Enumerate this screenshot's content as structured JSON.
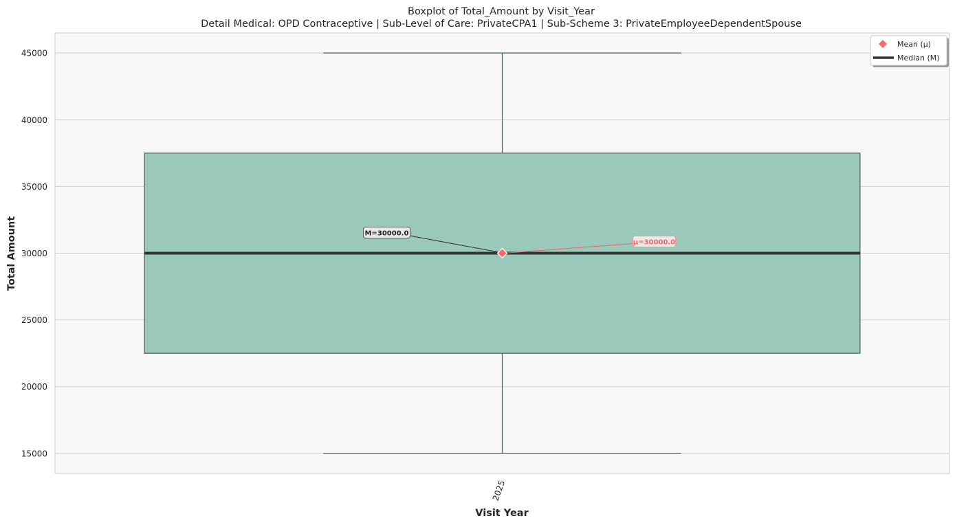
{
  "chart_data": {
    "type": "box",
    "title": "Boxplot of Total_Amount by Visit_Year",
    "subtitle": "Detail Medical: OPD Contraceptive | Sub-Level of Care: PrivateCPA1 | Sub-Scheme 3: PrivateEmployeeDependentSpouse",
    "xlabel": "Visit Year",
    "ylabel": "Total Amount",
    "categories": [
      "2025"
    ],
    "boxes": [
      {
        "category": "2025",
        "whisker_low": 15000,
        "q1": 22500,
        "median": 30000,
        "q3": 37500,
        "whisker_high": 45000,
        "mean": 30000,
        "median_label": "M=30000.0",
        "mean_label": "μ=30000.0"
      }
    ],
    "y_ticks": [
      15000,
      20000,
      25000,
      30000,
      35000,
      40000,
      45000
    ],
    "ylim": [
      13500,
      46500
    ],
    "grid": true,
    "legend": {
      "position": "top-right",
      "entries": [
        {
          "label": "Mean (μ)",
          "marker": "diamond"
        },
        {
          "label": "Median (M)",
          "marker": "line"
        }
      ]
    },
    "colors": {
      "box_fill": "#9ac9bb",
      "box_edge": "#4f5b58",
      "median_line": "#2e3436",
      "mean_marker": "#f46b6b",
      "mean_label": "#e86a6a",
      "plot_bg": "#f8f8f8",
      "grid": "#cfcfcf"
    }
  }
}
